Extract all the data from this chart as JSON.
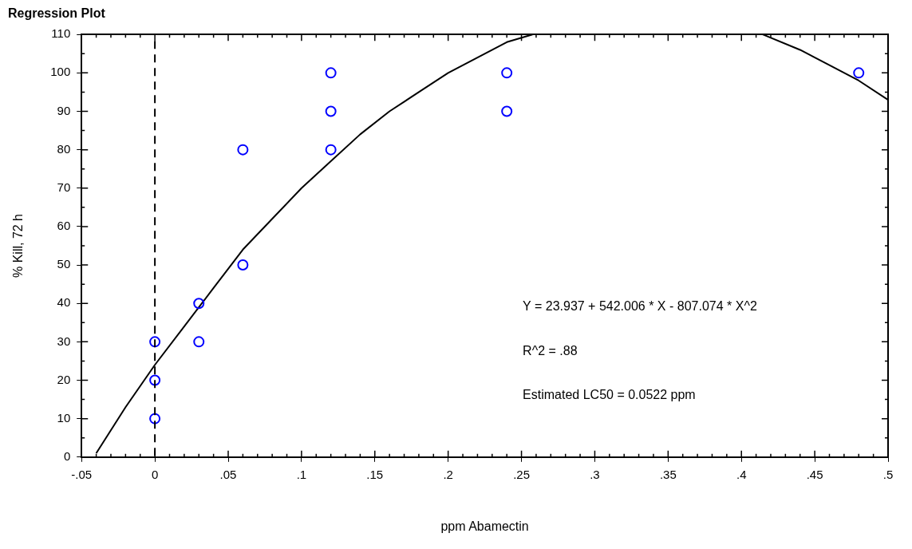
{
  "chart_data": {
    "type": "scatter",
    "title": "Regression Plot",
    "xlabel": "ppm Abamectin",
    "ylabel": "% Kill, 72 h",
    "xlim": [
      -0.05,
      0.5
    ],
    "xticks": [
      {
        "value": -0.05,
        "label": "-.05"
      },
      0,
      {
        "value": 0.05,
        "label": ".05"
      },
      {
        "value": 0.1,
        "label": ".1"
      },
      {
        "value": 0.15,
        "label": ".15"
      },
      {
        "value": 0.2,
        "label": ".2"
      },
      {
        "value": 0.25,
        "label": ".25"
      },
      {
        "value": 0.3,
        "label": ".3"
      },
      {
        "value": 0.35,
        "label": ".35"
      },
      {
        "value": 0.4,
        "label": ".4"
      },
      {
        "value": 0.45,
        "label": ".45"
      },
      {
        "value": 0.5,
        "label": ".5"
      }
    ],
    "ylim": [
      0,
      110
    ],
    "yticks": [
      0,
      10,
      20,
      30,
      40,
      50,
      60,
      70,
      80,
      90,
      100,
      110
    ],
    "grid": false,
    "legend": false,
    "marker": "circle",
    "series": [
      {
        "type": "scatter",
        "color": "#0000ff",
        "x": [
          0,
          0,
          0,
          0.03,
          0.03,
          0.06,
          0.06,
          0.12,
          0.12,
          0.12,
          0.24,
          0.24,
          0.48
        ],
        "values": [
          30,
          20,
          10,
          40,
          30,
          80,
          50,
          100,
          90,
          80,
          100,
          90,
          100
        ]
      },
      {
        "type": "line",
        "color": "#000000",
        "marker": "none",
        "x": [
          -0.04,
          -0.02,
          0,
          0.02,
          0.04,
          0.06,
          0.08,
          0.1,
          0.12,
          0.14,
          0.16,
          0.18,
          0.2,
          0.22,
          0.24,
          0.2575,
          0.3,
          0.4145,
          0.44,
          0.46,
          0.48,
          0.5
        ],
        "values": [
          1,
          13,
          24,
          34,
          44,
          54,
          62,
          70,
          77,
          84,
          90,
          95,
          100,
          104,
          108,
          110,
          null,
          110,
          106,
          102,
          98,
          93
        ]
      }
    ],
    "ref_lines": [
      {
        "axis": "x",
        "value": 0,
        "color": "#000000",
        "line_style": "dashed"
      }
    ],
    "annotations": [
      "Y = 23.937 + 542.006 * X - 807.074 * X^2",
      "R^2 = .88",
      "Estimated LC50 = 0.0522 ppm"
    ]
  }
}
